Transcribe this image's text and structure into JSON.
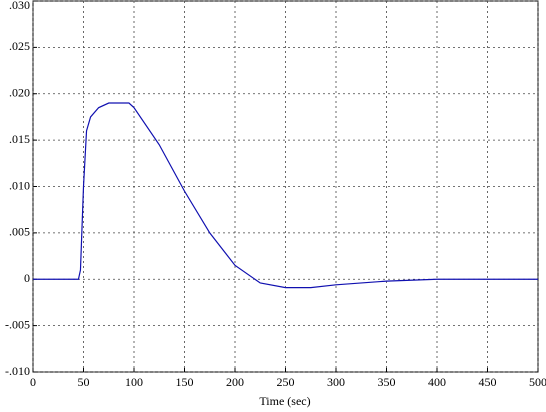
{
  "chart_data": {
    "type": "line",
    "xlabel": "Time (sec)",
    "x": [
      0,
      45,
      47,
      50,
      53,
      57,
      65,
      75,
      95,
      100,
      125,
      150,
      175,
      200,
      225,
      250,
      275,
      300,
      350,
      400,
      500
    ],
    "values": [
      0,
      0,
      0.001,
      0.01,
      0.016,
      0.0175,
      0.0185,
      0.019,
      0.019,
      0.0185,
      0.0145,
      0.0095,
      0.005,
      0.0015,
      -0.0004,
      -0.0009,
      -0.0009,
      -0.0006,
      -0.0002,
      0,
      0
    ],
    "color": "#1010b0",
    "xlim": [
      0,
      500
    ],
    "xticks": [
      0,
      50,
      100,
      150,
      200,
      250,
      300,
      350,
      400,
      450,
      500
    ],
    "ylim": [
      -0.01,
      0.03
    ],
    "yticks": [
      {
        "value": -0.01,
        "label": "-.010"
      },
      {
        "value": -0.005,
        "label": "-.005"
      },
      0,
      {
        "value": 0.005,
        "label": ".005"
      },
      {
        "value": 0.01,
        "label": ".010"
      },
      {
        "value": 0.015,
        "label": ".015"
      },
      {
        "value": 0.02,
        "label": ".020"
      },
      {
        "value": 0.025,
        "label": ".025"
      },
      {
        "value": 0.03,
        "label": ".030"
      }
    ],
    "grid": true
  }
}
